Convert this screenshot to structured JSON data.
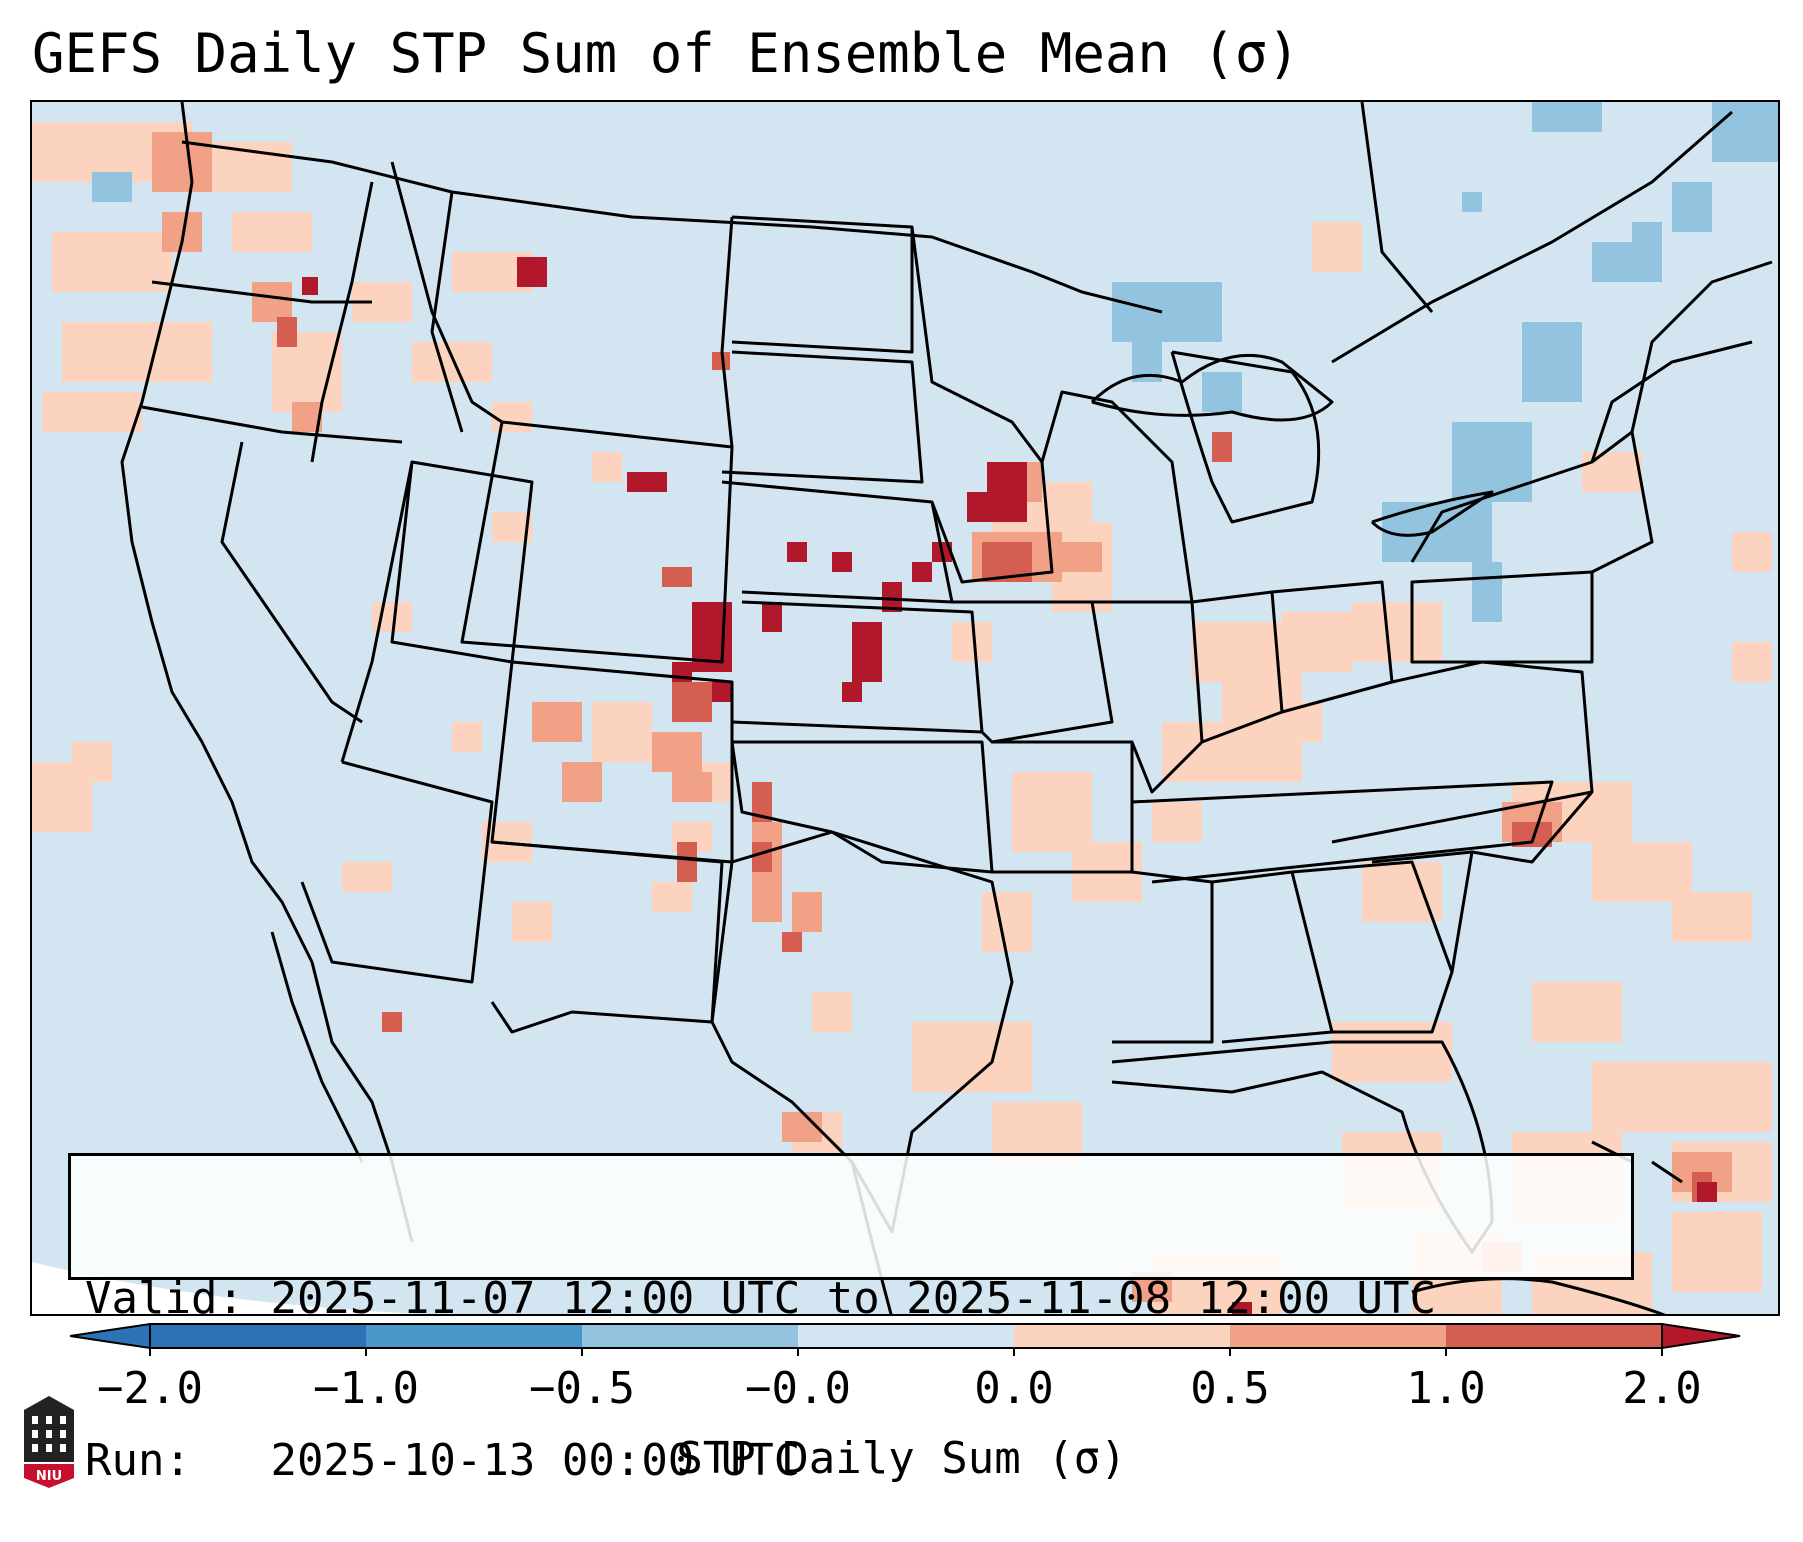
{
  "title": "GEFS Daily STP Sum of Ensemble Mean (σ)",
  "info_box": {
    "valid_label": "Valid:",
    "valid_value": "2025-11-07 12:00 UTC to 2025-11-08 12:00 UTC",
    "run_label": "Run:",
    "run_value": "2025-10-13 00:00 UTC"
  },
  "colorbar": {
    "label": "STP Daily Sum (σ)",
    "ticks": [
      "−2.0",
      "−1.0",
      "−0.5",
      "−0.0",
      "0.0",
      "0.5",
      "1.0",
      "2.0"
    ],
    "colors": [
      "#2b73b4",
      "#4a96c8",
      "#93c4df",
      "#d2e5f1",
      "#f8f8f8",
      "#fbd3bf",
      "#f1a185",
      "#d45e4f",
      "#b2182b"
    ]
  },
  "logo": {
    "text": "NIU",
    "name": "niu-logo"
  },
  "map": {
    "ocean_color": "#d2e5f1",
    "land_neutral_color": "#d2e5f1",
    "legend": [
      {
        "range": "< -2.0",
        "color": "#2b73b4"
      },
      {
        "range": "-1.0 to -0.5",
        "color": "#93c4df"
      },
      {
        "range": "0.0 to 0.5",
        "color": "#fbd3bf"
      },
      {
        "range": "0.5 to 1.0",
        "color": "#f1a185"
      },
      {
        "range": "1.0 to 2.0",
        "color": "#d45e4f"
      },
      {
        "range": "> 2.0",
        "color": "#b2182b"
      }
    ]
  }
}
